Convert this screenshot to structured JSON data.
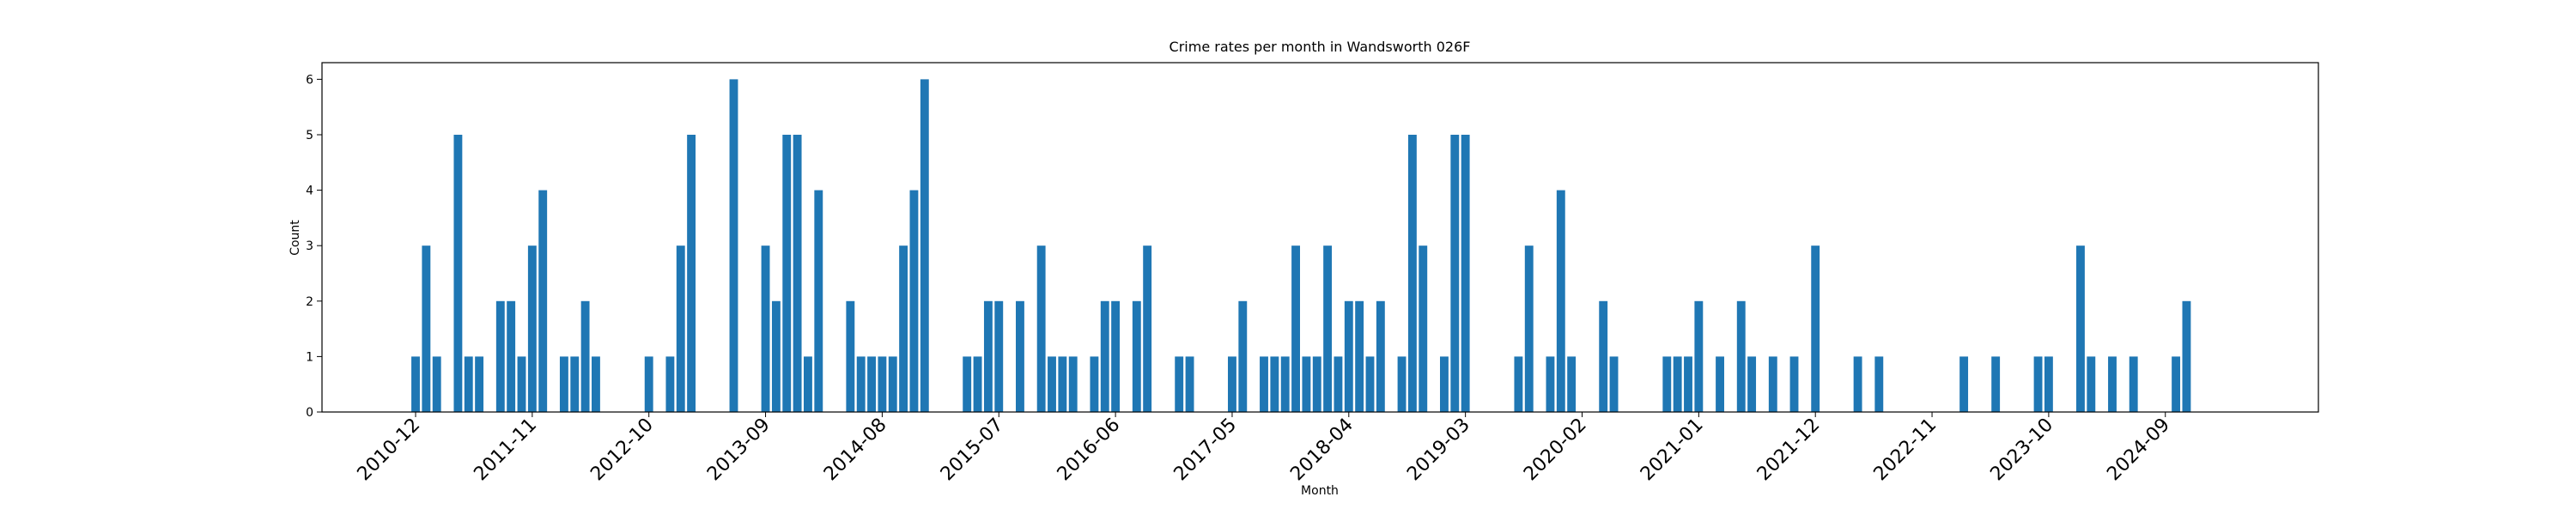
{
  "chart_data": {
    "type": "bar",
    "title": "Crime rates per month in Wandsworth 026F",
    "x_label": "Month",
    "y_label": "Count",
    "color": "#1f77b4",
    "categories": [
      "2010-12",
      null,
      null,
      null,
      null,
      null,
      null,
      null,
      null,
      null,
      null,
      "2011-11",
      null,
      null,
      null,
      null,
      null,
      null,
      null,
      null,
      null,
      null,
      "2012-10",
      null,
      null,
      null,
      null,
      null,
      null,
      null,
      null,
      null,
      null,
      "2013-09",
      null,
      null,
      null,
      null,
      null,
      null,
      null,
      null,
      null,
      null,
      "2014-08",
      null,
      null,
      null,
      null,
      null,
      null,
      null,
      null,
      null,
      null,
      "2015-07",
      null,
      null,
      null,
      null,
      null,
      null,
      null,
      null,
      null,
      null,
      "2016-06",
      null,
      null,
      null,
      null,
      null,
      null,
      null,
      null,
      null,
      null,
      "2017-05",
      null,
      null,
      null,
      null,
      null,
      null,
      null,
      null,
      null,
      null,
      "2018-04",
      null,
      null,
      null,
      null,
      null,
      null,
      null,
      null,
      null,
      null,
      "2019-03",
      null,
      null,
      null,
      null,
      null,
      null,
      null,
      null,
      null,
      null,
      "2020-02",
      null,
      null,
      null,
      null,
      null,
      null,
      null,
      null,
      null,
      null,
      "2021-01",
      null,
      null,
      null,
      null,
      null,
      null,
      null,
      null,
      null,
      null,
      "2021-12",
      null,
      null,
      null,
      null,
      null,
      null,
      null,
      null,
      null,
      null,
      "2022-11",
      null,
      null,
      null,
      null,
      null,
      null,
      null,
      null,
      null,
      null,
      "2023-10",
      null,
      null,
      null,
      null,
      null,
      null,
      null,
      null,
      null,
      null,
      "2024-09",
      null,
      null
    ],
    "values": [
      1,
      3,
      1,
      0,
      5,
      1,
      1,
      0,
      2,
      2,
      1,
      3,
      4,
      0,
      1,
      1,
      2,
      1,
      0,
      0,
      0,
      0,
      1,
      0,
      1,
      3,
      5,
      0,
      0,
      0,
      6,
      0,
      0,
      3,
      2,
      5,
      5,
      1,
      4,
      0,
      0,
      2,
      1,
      1,
      1,
      1,
      3,
      4,
      6,
      0,
      0,
      0,
      1,
      1,
      2,
      2,
      0,
      2,
      0,
      3,
      1,
      1,
      1,
      0,
      1,
      2,
      2,
      0,
      2,
      3,
      0,
      0,
      1,
      1,
      0,
      0,
      0,
      1,
      2,
      0,
      1,
      1,
      1,
      3,
      1,
      1,
      3,
      1,
      2,
      2,
      1,
      2,
      0,
      1,
      5,
      3,
      0,
      1,
      5,
      5,
      0,
      0,
      0,
      0,
      1,
      3,
      0,
      1,
      4,
      1,
      0,
      0,
      2,
      1,
      0,
      0,
      0,
      0,
      1,
      1,
      1,
      2,
      0,
      1,
      0,
      2,
      1,
      0,
      1,
      0,
      1,
      0,
      3,
      0,
      0,
      0,
      1,
      0,
      1,
      0,
      0,
      0,
      0,
      0,
      0,
      0,
      1,
      0,
      0,
      1,
      0,
      0,
      0,
      1,
      1,
      0,
      0,
      3,
      1,
      0,
      1,
      0,
      1,
      0,
      0,
      0,
      1,
      2
    ],
    "ylim": [
      0,
      6.3
    ],
    "yticks": [
      0,
      1,
      2,
      3,
      4,
      5,
      6
    ]
  }
}
